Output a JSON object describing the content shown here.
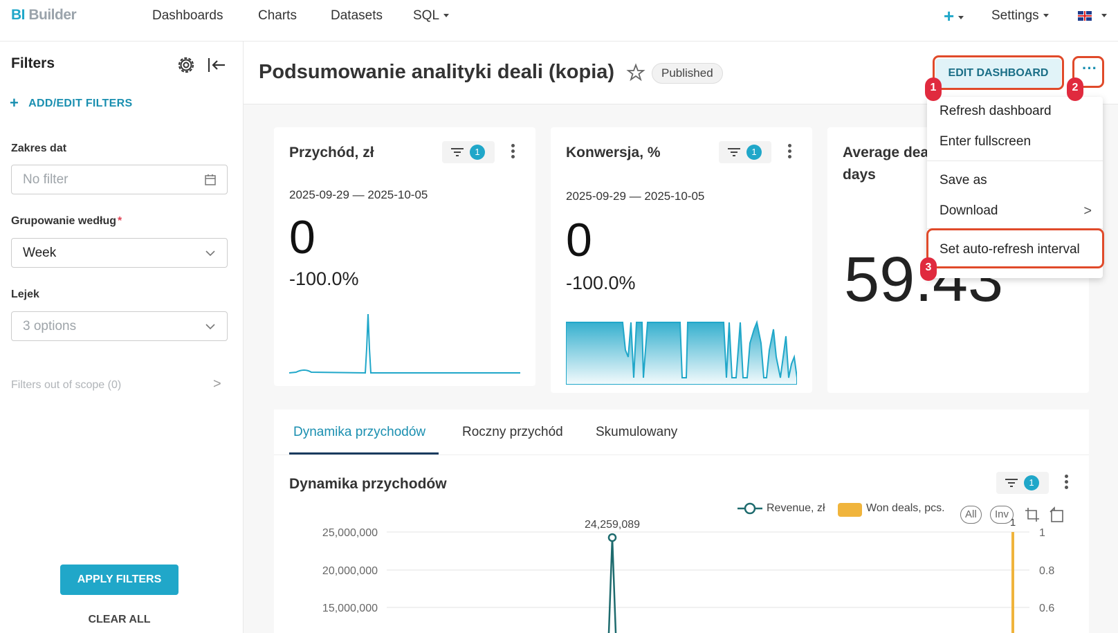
{
  "app": {
    "logo_bi": "BI",
    "logo_builder": "Builder",
    "nav": [
      "Dashboards",
      "Charts",
      "Datasets",
      "SQL"
    ],
    "settings_label": "Settings",
    "plus_label": "+"
  },
  "sidebar": {
    "title": "Filters",
    "add_filters": "ADD/EDIT FILTERS",
    "date_range_label": "Zakres dat",
    "date_range_placeholder": "No filter",
    "group_by_label": "Grupowanie według",
    "group_by_required": "*",
    "group_by_value": "Week",
    "funnel_label": "Lejek",
    "funnel_placeholder": "3 options",
    "out_of_scope": "Filters out of scope (0)",
    "apply": "APPLY FILTERS",
    "clear": "CLEAR ALL"
  },
  "dashboard": {
    "title": "Podsumowanie analityki deali (kopia)",
    "status": "Published",
    "edit_button": "EDIT DASHBOARD",
    "more_button": "···"
  },
  "annotations": [
    "1",
    "2",
    "3"
  ],
  "menu": {
    "items": [
      "Refresh dashboard",
      "Enter fullscreen",
      "Save as",
      "Download",
      "Set auto-refresh interval"
    ],
    "submenu_arrow": ">"
  },
  "cards": [
    {
      "title": "Przychód, zł",
      "filter_count": "1",
      "range": "2025-09-29 — 2025-10-05",
      "value": "0",
      "change": "-100.0%"
    },
    {
      "title": "Konwersja, %",
      "filter_count": "1",
      "range": "2025-09-29 — 2025-10-05",
      "value": "0",
      "change": "-100.0%"
    },
    {
      "title_line1": "Average dea",
      "title_line2": "days",
      "value": "59.43"
    }
  ],
  "tabs": [
    "Dynamika przychodów",
    "Roczny przychód",
    "Skumulowany"
  ],
  "chart": {
    "title": "Dynamika przychodów",
    "filter_count": "1",
    "legend": [
      "Revenue, zł",
      "Won deals, pcs."
    ],
    "legend_buttons": [
      "All",
      "Inv"
    ],
    "right_axis_top": "1",
    "colors": {
      "revenue": "#1e6b6e",
      "won_deals": "#f0b43c",
      "accent": "#20a7c9"
    }
  },
  "chart_data": {
    "type": "line",
    "title": "Dynamika przychodów",
    "y_ticks": [
      "25,000,000",
      "20,000,000",
      "15,000,000"
    ],
    "y2_ticks": [
      "1",
      "0.8",
      "0.6"
    ],
    "peak_label": "24,259,089",
    "peak_value": 24259089,
    "series": [
      {
        "name": "Revenue, zł",
        "peak": 24259089
      },
      {
        "name": "Won deals, pcs.",
        "peak": 1
      }
    ]
  }
}
